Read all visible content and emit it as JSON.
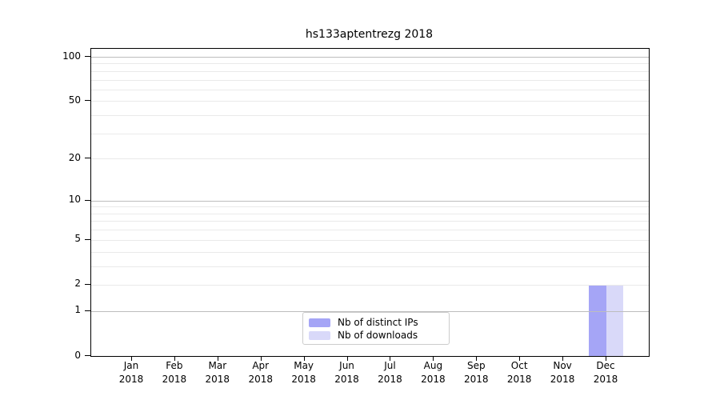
{
  "chart_data": {
    "type": "bar",
    "title": "hs133aptentrezg 2018",
    "categories": [
      "Jan",
      "Feb",
      "Mar",
      "Apr",
      "May",
      "Jun",
      "Jul",
      "Aug",
      "Sep",
      "Oct",
      "Nov",
      "Dec"
    ],
    "category_year": "2018",
    "series": [
      {
        "name": "Nb of distinct IPs",
        "color": "#a5a5f6",
        "values": [
          0,
          0,
          0,
          0,
          0,
          0,
          0,
          0,
          0,
          0,
          0,
          2
        ]
      },
      {
        "name": "Nb of downloads",
        "color": "#d9d9f9",
        "values": [
          0,
          0,
          0,
          0,
          0,
          0,
          0,
          0,
          0,
          0,
          0,
          2
        ]
      }
    ],
    "yscale": "log10(1+y)",
    "ylim": [
      0,
      100
    ],
    "y_ticks": [
      0,
      1,
      2,
      5,
      10,
      20,
      50,
      100
    ],
    "y_major_grid": [
      1,
      10,
      100
    ],
    "y_minor_grid": [
      2,
      3,
      4,
      5,
      6,
      7,
      8,
      9,
      20,
      30,
      40,
      50,
      60,
      70,
      80,
      90
    ],
    "grid": "on",
    "legend_position": "lower center",
    "colors": {
      "major_grid": "#bdbdbd",
      "minor_grid": "#eaeaea",
      "spine": "#000000",
      "text": "#000000",
      "background": "#ffffff"
    }
  }
}
